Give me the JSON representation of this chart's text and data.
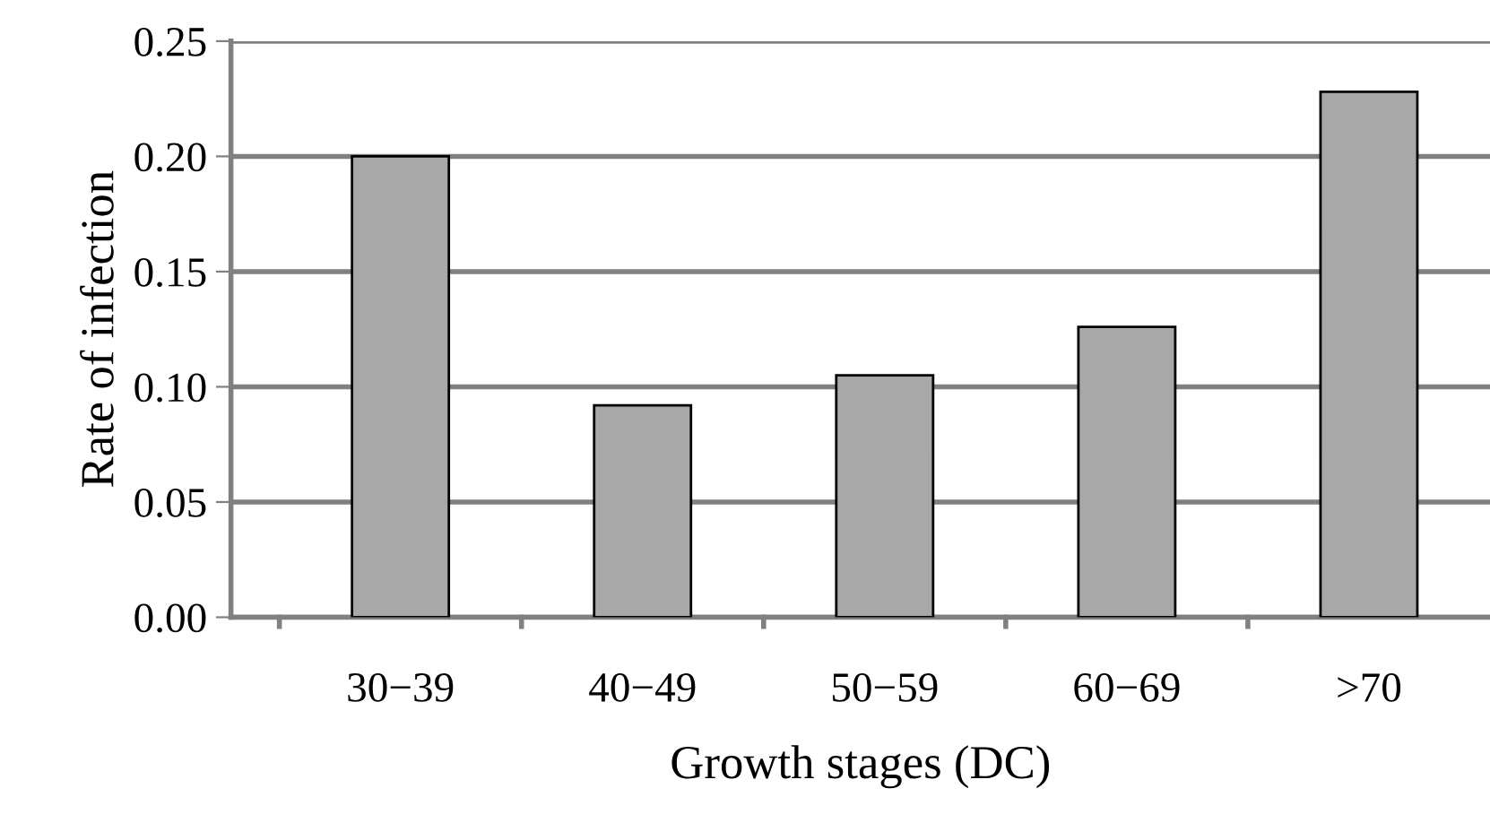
{
  "chart_data": {
    "type": "bar",
    "xlabel": "Growth stages (DC)",
    "ylabel": "Rate of infection",
    "categories": [
      "30−39",
      "40−49",
      "50−59",
      "60−69",
      ">70"
    ],
    "values": [
      0.2,
      0.092,
      0.105,
      0.126,
      0.228
    ],
    "color": "#a8a8a8",
    "ylim": [
      0,
      0.25
    ],
    "yticks": [
      {
        "value": 0,
        "label": "0.00"
      },
      {
        "value": 0.05,
        "label": "0.05"
      },
      {
        "value": 0.1,
        "label": "0.10"
      },
      {
        "value": 0.15,
        "label": "0.15"
      },
      {
        "value": 0.2,
        "label": "0.20"
      },
      {
        "value": 0.25,
        "label": "0.25"
      }
    ],
    "grid": "y"
  }
}
